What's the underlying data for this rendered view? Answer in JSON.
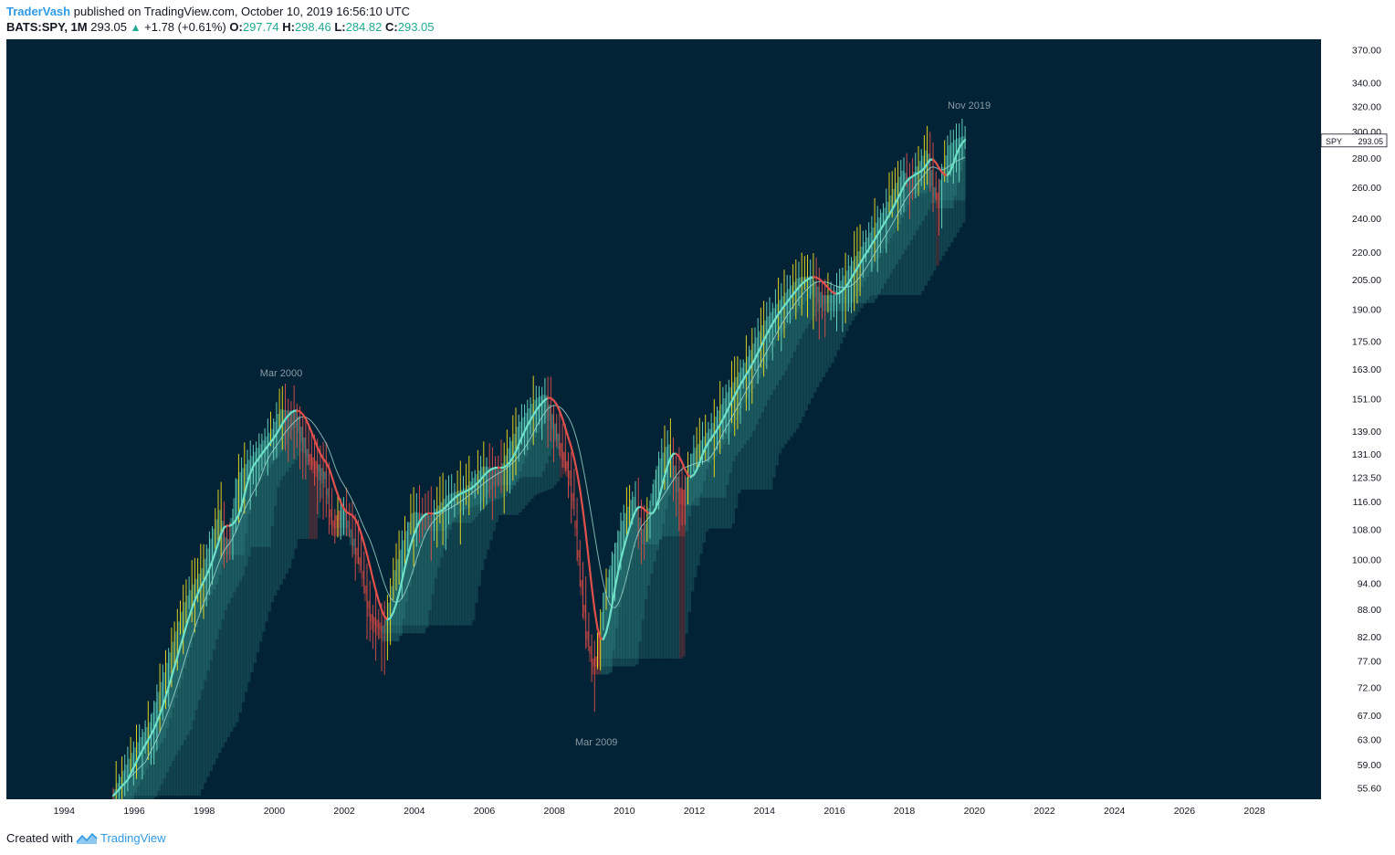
{
  "header": {
    "author": "TraderVash",
    "published": "published on TradingView.com, October 10, 2019 16:56:10 UTC"
  },
  "quote": {
    "symbol": "BATS:SPY, 1M",
    "last": "293.05",
    "change": "+1.78 (+0.61%)",
    "o_label": "O:",
    "o_val": "297.74",
    "h_label": "H:",
    "h_val": "298.46",
    "l_label": "L:",
    "l_val": "284.82",
    "c_label": "C:",
    "c_val": "293.05"
  },
  "footer": {
    "created_with": "Created with",
    "brand": "TradingView"
  },
  "colors": {
    "background": "#022335",
    "up_line": "#6ee0c8",
    "down_line": "#e2504c",
    "band_teal": "#2f7f7c",
    "band_red": "#b8403a",
    "wick_yellow": "#f5e21f",
    "axis_text": "#e6e6e6",
    "annotation": "#8a9aa5"
  },
  "chart_data": {
    "type": "line",
    "title": "",
    "scale": "log",
    "ylim": [
      54,
      380
    ],
    "xlim": [
      1992.35,
      2029.9
    ],
    "y_ticks": [
      "370.00",
      "340.00",
      "320.00",
      "300.00",
      "280.00",
      "260.00",
      "240.00",
      "220.00",
      "205.00",
      "190.00",
      "175.00",
      "163.00",
      "151.00",
      "139.00",
      "131.00",
      "123.50",
      "116.00",
      "108.00",
      "100.00",
      "94.00",
      "88.00",
      "82.00",
      "77.00",
      "72.00",
      "67.00",
      "63.00",
      "59.00",
      "55.60"
    ],
    "x_ticks": [
      "1994",
      "1996",
      "1998",
      "2000",
      "2002",
      "2004",
      "2006",
      "2008",
      "2010",
      "2012",
      "2014",
      "2016",
      "2018",
      "2020",
      "2022",
      "2024",
      "2026",
      "2028"
    ],
    "annotations": [
      {
        "text": "Mar 2000",
        "x": 2000.2,
        "y": 160
      },
      {
        "text": "Mar 2009",
        "x": 2009.2,
        "y": 62
      },
      {
        "text": "Nov 2019",
        "x": 2019.85,
        "y": 318
      }
    ],
    "price_label": {
      "symbol": "SPY",
      "value": "293.05",
      "y": 293.05
    },
    "series": [
      {
        "x": [
          1995.4,
          1996.0,
          1996.5,
          1997.0,
          1997.5,
          1998.0,
          1998.5,
          1998.7,
          1999.0,
          1999.5,
          2000.0,
          2000.2,
          2000.7,
          2001.0,
          2001.5,
          2001.7,
          2002.0,
          2002.5,
          2002.8,
          2003.2,
          2003.5,
          2004.0,
          2004.5,
          2005.0,
          2005.5,
          2006.0,
          2006.5,
          2007.0,
          2007.5,
          2007.8,
          2008.2,
          2008.5,
          2008.8,
          2009.0,
          2009.2,
          2009.5,
          2010.0,
          2010.3,
          2010.6,
          2011.0,
          2011.3,
          2011.7,
          2012.0,
          2012.5,
          2013.0,
          2013.5,
          2014.0,
          2014.5,
          2015.0,
          2015.4,
          2015.7,
          2016.0,
          2016.5,
          2017.0,
          2017.5,
          2018.0,
          2018.2,
          2018.7,
          2018.95,
          2019.3,
          2019.5,
          2019.8
        ],
        "values": [
          54.5,
          61,
          66,
          77,
          90,
          98,
          114,
          103,
          124,
          132,
          140,
          147,
          146,
          132,
          125,
          110,
          115,
          100,
          87,
          84,
          98,
          113,
          112,
          118,
          120,
          127,
          126,
          141,
          151,
          153,
          136,
          125,
          96,
          82,
          76,
          93,
          111,
          118,
          107,
          128,
          135,
          118,
          132,
          140,
          154,
          166,
          183,
          195,
          206,
          207,
          197,
          197,
          213,
          229,
          247,
          272,
          265,
          288,
          253,
          289,
          294,
          297
        ]
      }
    ]
  }
}
